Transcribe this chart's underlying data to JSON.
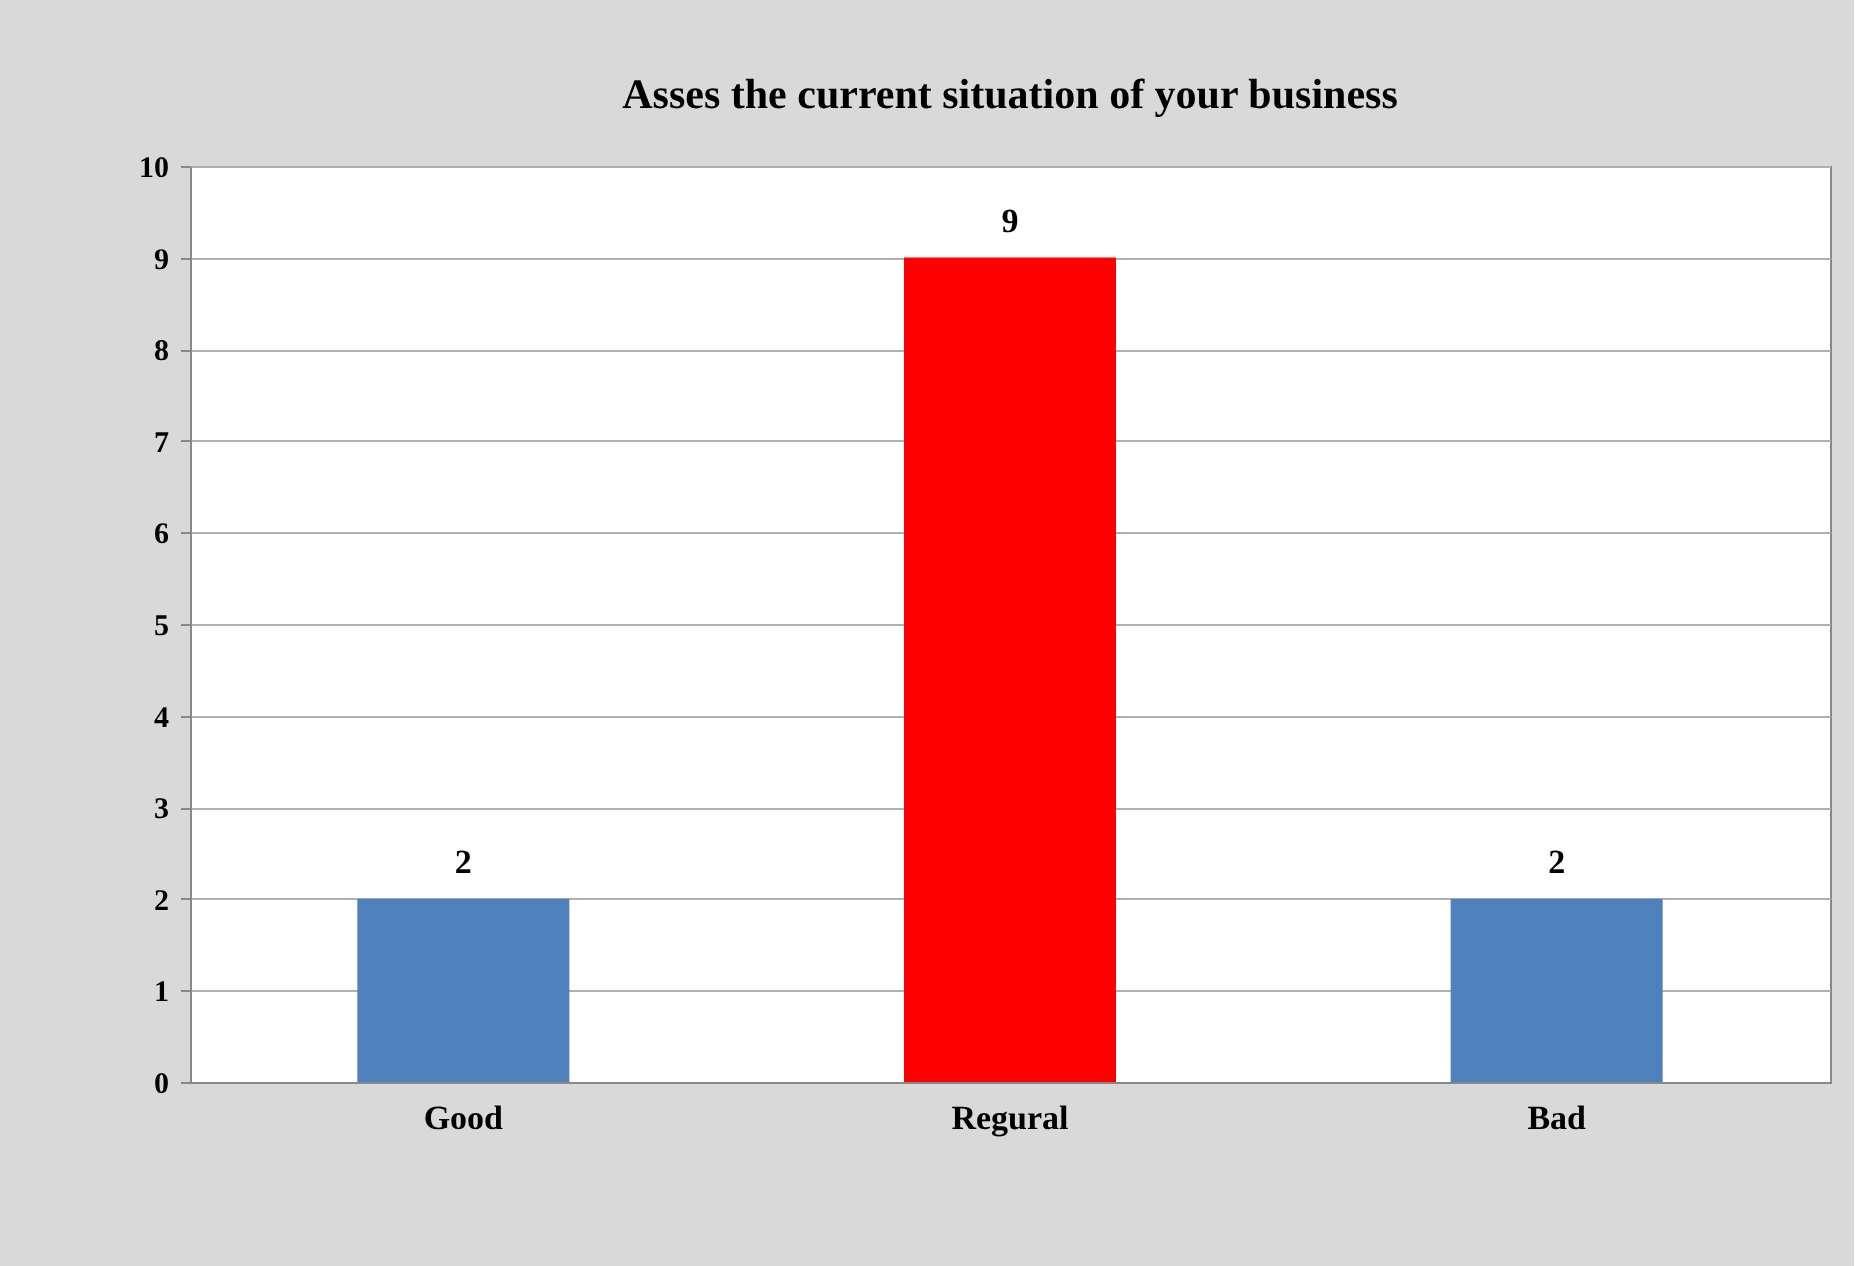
{
  "chart_data": {
    "type": "bar",
    "title": "Asses the current situation of your business",
    "categories": [
      "Good",
      "Regural",
      "Bad"
    ],
    "values": [
      2,
      9,
      2
    ],
    "colors": [
      "#4f81bd",
      "#ff0000",
      "#4f81bd"
    ],
    "ylim": [
      0,
      10
    ],
    "yticks": [
      0,
      1,
      2,
      3,
      4,
      5,
      6,
      7,
      8,
      9,
      10
    ],
    "grid": "y",
    "data_labels": true
  }
}
